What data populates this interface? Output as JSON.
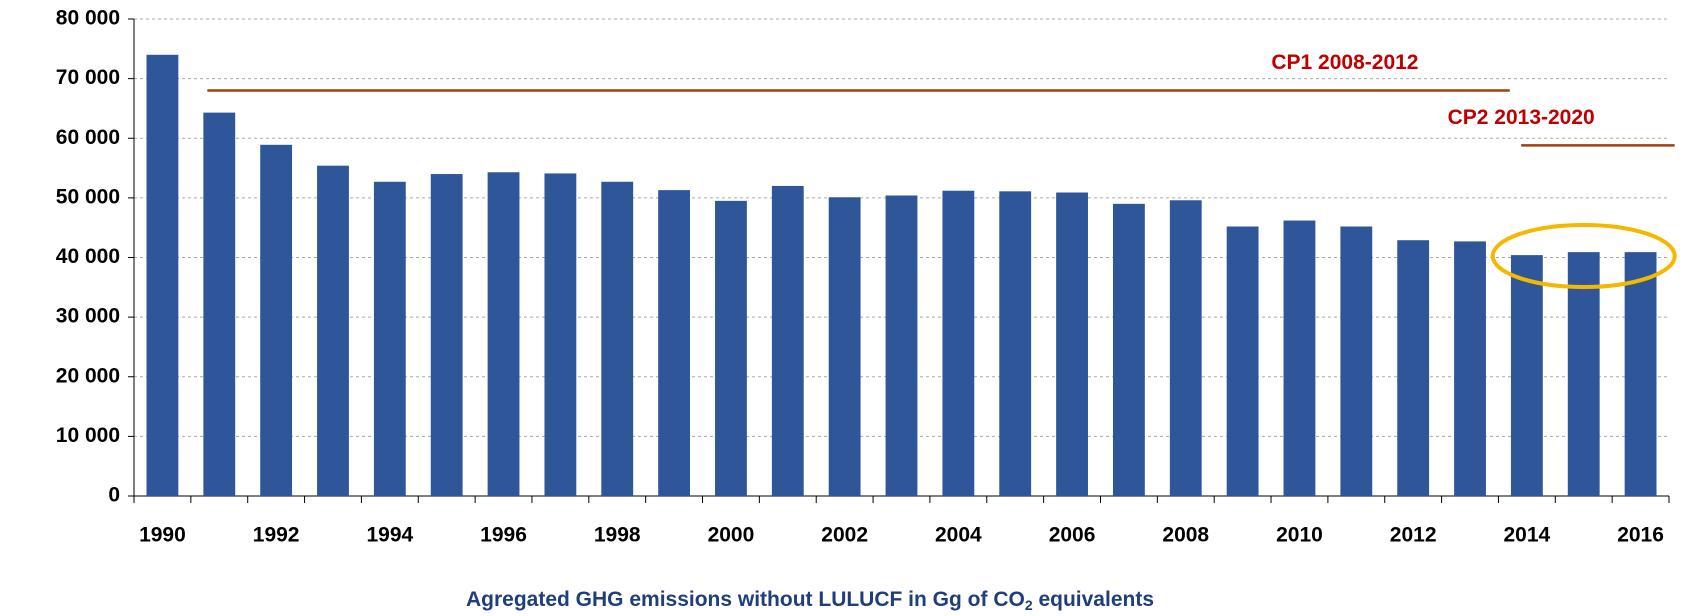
{
  "chart_data": {
    "type": "bar",
    "title": [
      "Agregated GHG emissions without LULUCF in Gg of CO",
      "2",
      " equivalents"
    ],
    "categories": [
      "1990",
      null,
      "1992",
      null,
      "1994",
      null,
      "1996",
      null,
      "1998",
      null,
      "2000",
      null,
      "2002",
      null,
      "2004",
      null,
      "2006",
      null,
      "2008",
      null,
      "2010",
      null,
      "2012",
      null,
      "2014",
      null,
      "2016"
    ],
    "values": [
      74000,
      64300,
      58900,
      55400,
      52700,
      54000,
      54300,
      54100,
      52700,
      51300,
      49500,
      52000,
      50100,
      50400,
      51200,
      51100,
      50900,
      49000,
      49600,
      45200,
      46200,
      45200,
      42900,
      42700,
      40400,
      40900,
      40900
    ],
    "color": "#30569a",
    "ylim": [
      0,
      80000
    ],
    "yticks": [
      0,
      {
        "value": 10000,
        "label": "10 000"
      },
      {
        "value": 20000,
        "label": "20 000"
      },
      {
        "value": 30000,
        "label": "30 000"
      },
      {
        "value": 40000,
        "label": "40 000"
      },
      {
        "value": 50000,
        "label": "50 000"
      },
      {
        "value": 60000,
        "label": "60 000"
      },
      {
        "value": 70000,
        "label": "70 000"
      },
      {
        "value": 80000,
        "label": "80 000"
      }
    ],
    "grid": true,
    "annotations": [
      {
        "text": "CP1 2008-2012",
        "value": 68000,
        "color": "#c00000",
        "line_color": "#a0410d"
      },
      {
        "text": "CP2 2013-2020",
        "value": 58800,
        "color": "#c00000",
        "line_color": "#a0410d"
      }
    ]
  }
}
